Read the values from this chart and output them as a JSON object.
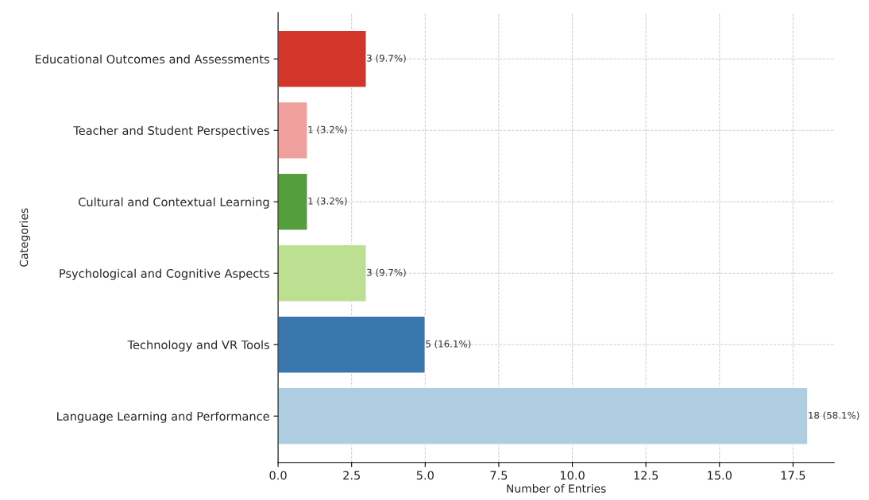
{
  "chart_data": {
    "type": "bar",
    "orientation": "horizontal",
    "xlabel": "Number of Entries",
    "ylabel": "Categories",
    "categories": [
      "Educational Outcomes and Assessments",
      "Teacher and Student Perspectives",
      "Cultural and Contextual Learning",
      "Psychological and Cognitive Aspects",
      "Technology and VR Tools",
      "Language Learning and Performance"
    ],
    "values": [
      3,
      1,
      1,
      3,
      5,
      18
    ],
    "colors": [
      "#d3352b",
      "#f0a09c",
      "#559e3e",
      "#bcdf92",
      "#3a77af",
      "#aecde1"
    ],
    "value_labels": [
      "3 (9.7%)",
      "1 (3.2%)",
      "1 (3.2%)",
      "3 (9.7%)",
      "5 (16.1%)",
      "18 (58.1%)"
    ],
    "xlim": [
      0,
      18.9
    ],
    "xticks": [
      {
        "value": 0,
        "label": "0.0"
      },
      {
        "value": 2.5,
        "label": "2.5"
      },
      {
        "value": 5,
        "label": "5.0"
      },
      {
        "value": 7.5,
        "label": "7.5"
      },
      {
        "value": 10,
        "label": "10.0"
      },
      {
        "value": 12.5,
        "label": "12.5"
      },
      {
        "value": 15,
        "label": "15.0"
      },
      {
        "value": 17.5,
        "label": "17.5"
      }
    ],
    "grid": true,
    "legend": false
  }
}
